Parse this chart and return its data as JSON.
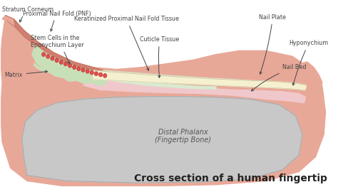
{
  "title": "Cross section of a human fingertip",
  "title_fontsize": 10,
  "title_color": "#222222",
  "bg_color": "#ffffff",
  "skin_color": "#e8a898",
  "skin_fold_color": "#d4887a",
  "bone_color": "#c8c8c8",
  "bone_outline": "#aaaaaa",
  "nail_plate_color": "#f5f0d0",
  "nail_bed_color": "#f0c8cc",
  "matrix_color": "#c8e0b8",
  "cuticle_color": "#d8ead0",
  "keratinized_color": "#e8e8d0",
  "stem_cell_color": "#e05050",
  "stem_cell_outline": "#c03030",
  "label_color": "#444444",
  "line_color": "#555555",
  "labels": {
    "proximal_nail_fold": "Proximal Nail Fold (PNF)",
    "stem_cells": "Stem Cells in the\nEponychium Layer",
    "stratum_corneum": "Stratum Corneum",
    "keratinized": "Keratinized Proximal Nail Fold Tissue",
    "cuticle": "Cuticle Tissue",
    "matrix": "Matrix",
    "nail_plate": "Nail Plate",
    "hyponychium": "Hyponychium",
    "nail_bed": "Nail Bed",
    "distal_phalanx": "Distal Phalanx\n(Fingertip Bone)"
  }
}
